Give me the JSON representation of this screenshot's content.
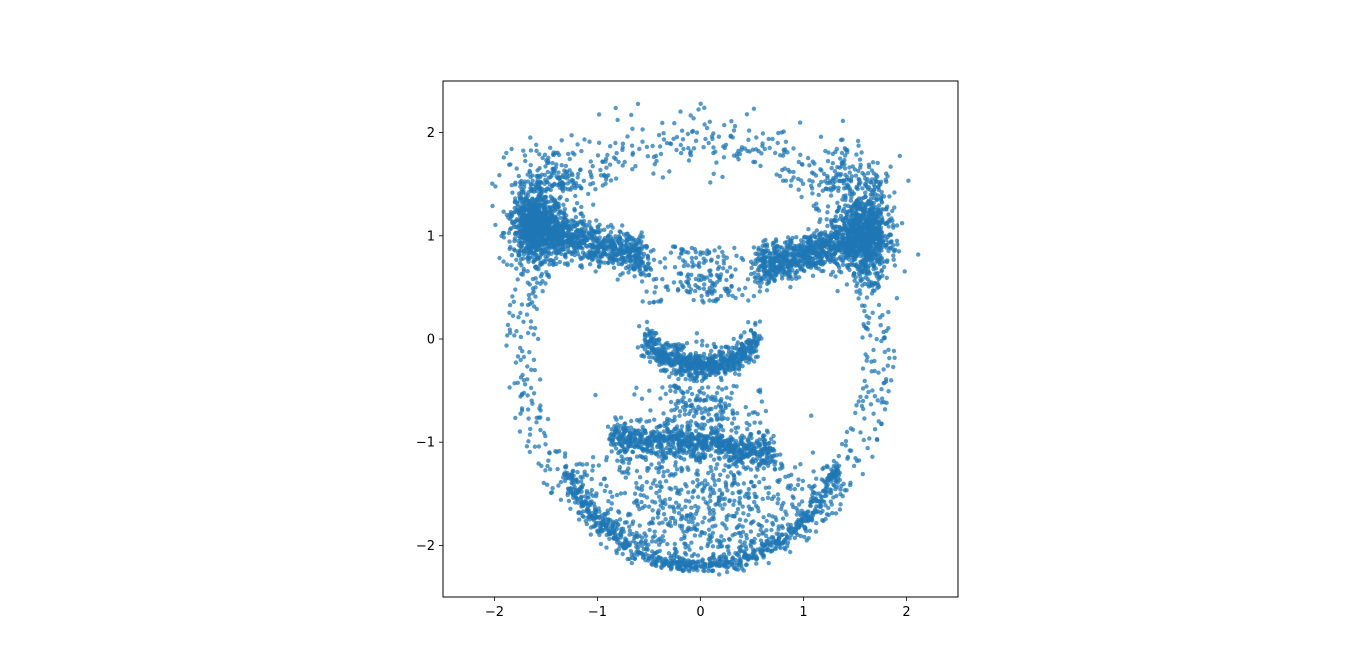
{
  "chart_data": {
    "type": "scatter",
    "title": "",
    "xlabel": "",
    "ylabel": "",
    "xlim": [
      -2.5,
      2.5
    ],
    "ylim": [
      -2.5,
      2.5
    ],
    "xticks": [
      -2,
      -1,
      0,
      1,
      2
    ],
    "yticks": [
      -2,
      -1,
      0,
      1,
      2
    ],
    "xtick_labels": [
      "−2",
      "−1",
      "0",
      "1",
      "2"
    ],
    "ytick_labels": [
      "−2",
      "−1",
      "0",
      "1",
      "2"
    ],
    "grid": false,
    "legend": "none",
    "marker_color": "#1f77b4",
    "marker_alpha": 0.75,
    "clusters": [
      {
        "part": "left-brow",
        "cx": -1.6,
        "cy": 1.1,
        "sx": 0.12,
        "sy": 0.18
      },
      {
        "part": "left-brow-arm",
        "from": [
          -1.5,
          1.05
        ],
        "to": [
          -0.55,
          0.8
        ],
        "spread": 0.1
      },
      {
        "part": "right-brow",
        "cx": 1.6,
        "cy": 1.0,
        "sx": 0.12,
        "sy": 0.2
      },
      {
        "part": "right-brow-arm",
        "from": [
          1.45,
          0.95
        ],
        "to": [
          0.55,
          0.7
        ],
        "spread": 0.1
      },
      {
        "part": "nose",
        "from": [
          -0.55,
          -0.1
        ],
        "to": [
          0.55,
          -0.1
        ],
        "sag": 0.15,
        "spread": 0.07
      },
      {
        "part": "mouth",
        "from": [
          -0.85,
          -0.95
        ],
        "to": [
          0.7,
          -1.05
        ],
        "spread": 0.08
      },
      {
        "part": "jaw",
        "cx": 0.0,
        "cy": -1.6,
        "sx": 0.8,
        "sy": 0.4
      },
      {
        "part": "face-outline",
        "cx": 0.0,
        "cy": -0.1,
        "rx": 1.85,
        "ry": 2.2
      }
    ]
  }
}
